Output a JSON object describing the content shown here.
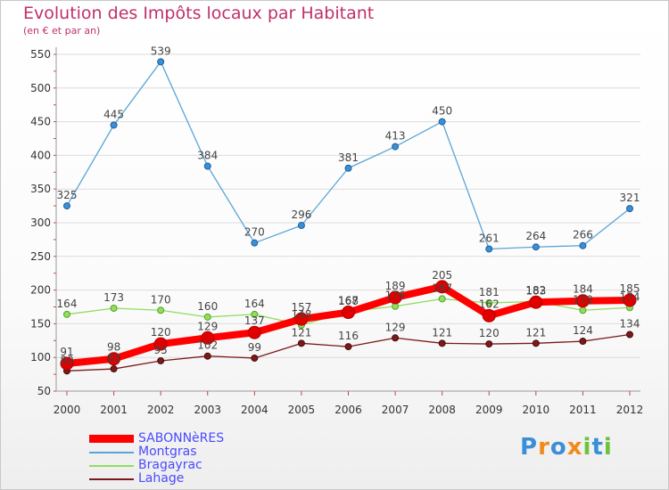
{
  "chart_data": {
    "type": "line",
    "title": "Evolution des Impôts locaux par Habitant",
    "subtitle": "(en € et par an)",
    "xlabel": "",
    "ylabel": "",
    "ylim": [
      50,
      550
    ],
    "yticks": [
      50,
      100,
      150,
      200,
      250,
      300,
      350,
      400,
      450,
      500,
      550
    ],
    "categories": [
      "2000",
      "2001",
      "2002",
      "2003",
      "2004",
      "2005",
      "2006",
      "2007",
      "2008",
      "2009",
      "2010",
      "2011",
      "2012"
    ],
    "series": [
      {
        "name": "SABONNèRES",
        "color": "#ff0000",
        "values": [
          91,
          98,
          120,
          129,
          137,
          157,
          167,
          189,
          205,
          162,
          182,
          184,
          185
        ]
      },
      {
        "name": "Montgras",
        "color": "#5aa5d8",
        "values": [
          325,
          445,
          539,
          384,
          270,
          296,
          381,
          413,
          450,
          261,
          264,
          266,
          321
        ]
      },
      {
        "name": "Bragayrac",
        "color": "#90dd60",
        "values": [
          164,
          173,
          170,
          160,
          164,
          148,
          168,
          176,
          187,
          181,
          183,
          170,
          174
        ]
      },
      {
        "name": "Lahage",
        "color": "#7b1a1a",
        "values": [
          80,
          83,
          95,
          102,
          99,
          121,
          116,
          129,
          121,
          120,
          121,
          124,
          134
        ]
      }
    ]
  },
  "logo": {
    "text": "Proxiti"
  }
}
